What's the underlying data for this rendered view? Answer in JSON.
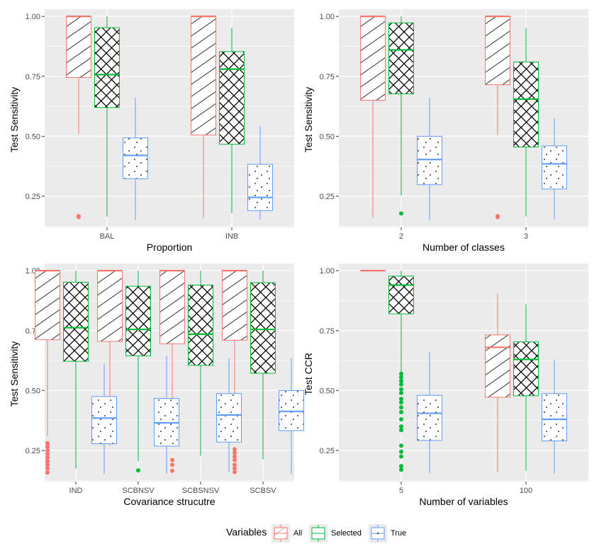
{
  "colors": {
    "panel_bg": "#EBEBEB",
    "grid": "#FFFFFF",
    "tick_text": "#4D4D4D",
    "All": "#F8766D",
    "Selected": "#00BA38",
    "True": "#619CFF"
  },
  "legend": {
    "title": "Variables",
    "position": "bottom",
    "items": [
      {
        "label": "All",
        "pattern": "stripe"
      },
      {
        "label": "Selected",
        "pattern": "crosshatch"
      },
      {
        "label": "True",
        "pattern": "dots"
      }
    ]
  },
  "chart_data": [
    {
      "type": "boxplot",
      "xlabel": "Proportion",
      "ylabel": "Test Sensitivity",
      "ylim": [
        0.12,
        1.03
      ],
      "yticks": [
        0.25,
        0.5,
        0.75,
        1.0
      ],
      "ytick_labels": [
        "0.25",
        "0.50",
        "0.75",
        "1.00"
      ],
      "grid": true,
      "categories": [
        "BAL",
        "INB"
      ],
      "series": [
        {
          "name": "All",
          "boxes": [
            {
              "min": 0.51,
              "q1": 0.745,
              "median": 1.0,
              "q3": 1.0,
              "max": 1.0,
              "outliers": [
                0.167,
                0.163
              ]
            },
            {
              "min": 0.16,
              "q1": 0.505,
              "median": 1.0,
              "q3": 1.0,
              "max": 1.0,
              "outliers": []
            }
          ]
        },
        {
          "name": "Selected",
          "boxes": [
            {
              "min": 0.165,
              "q1": 0.62,
              "median": 0.757,
              "q3": 0.953,
              "max": 1.0,
              "outliers": []
            },
            {
              "min": 0.18,
              "q1": 0.467,
              "median": 0.78,
              "q3": 0.853,
              "max": 0.953,
              "outliers": []
            }
          ]
        },
        {
          "name": "True",
          "boxes": [
            {
              "min": 0.15,
              "q1": 0.323,
              "median": 0.42,
              "q3": 0.493,
              "max": 0.66,
              "outliers": []
            },
            {
              "min": 0.152,
              "q1": 0.19,
              "median": 0.245,
              "q3": 0.383,
              "max": 0.543,
              "outliers": []
            }
          ]
        }
      ]
    },
    {
      "type": "boxplot",
      "xlabel": "Number of classes",
      "ylabel": "Test Sensitivity",
      "ylim": [
        0.12,
        1.03
      ],
      "yticks": [
        0.25,
        0.5,
        0.75,
        1.0
      ],
      "ytick_labels": [
        "0.25",
        "0.50",
        "0.75",
        "1.00"
      ],
      "grid": true,
      "categories": [
        "2",
        "3"
      ],
      "series": [
        {
          "name": "All",
          "boxes": [
            {
              "min": 0.16,
              "q1": 0.65,
              "median": 1.0,
              "q3": 1.0,
              "max": 1.0,
              "outliers": []
            },
            {
              "min": 0.505,
              "q1": 0.715,
              "median": 1.0,
              "q3": 1.0,
              "max": 1.0,
              "outliers": [
                0.167,
                0.163
              ]
            }
          ]
        },
        {
          "name": "Selected",
          "boxes": [
            {
              "min": 0.253,
              "q1": 0.677,
              "median": 0.86,
              "q3": 0.973,
              "max": 1.0,
              "outliers": [
                0.178
              ]
            },
            {
              "min": 0.165,
              "q1": 0.455,
              "median": 0.655,
              "q3": 0.81,
              "max": 0.95,
              "outliers": []
            }
          ]
        },
        {
          "name": "True",
          "boxes": [
            {
              "min": 0.15,
              "q1": 0.298,
              "median": 0.403,
              "q3": 0.5,
              "max": 0.66,
              "outliers": []
            },
            {
              "min": 0.152,
              "q1": 0.28,
              "median": 0.385,
              "q3": 0.46,
              "max": 0.575,
              "outliers": []
            }
          ]
        }
      ]
    },
    {
      "type": "boxplot",
      "xlabel": "Covariance strucutre",
      "ylabel": "Test Sensitivity",
      "ylim": [
        0.12,
        1.03
      ],
      "yticks": [
        0.25,
        0.5,
        0.75,
        1.0
      ],
      "ytick_labels": [
        "0.25",
        "0.50",
        "0.75",
        "1.00"
      ],
      "grid": true,
      "categories": [
        "IND",
        "SCBNSV",
        "SCBSNSV",
        "SCBSV"
      ],
      "series": [
        {
          "name": "All",
          "boxes": [
            {
              "min": 0.31,
              "q1": 0.712,
              "median": 1.0,
              "q3": 1.0,
              "max": 1.0,
              "outliers": [
                0.28,
                0.265,
                0.25,
                0.235,
                0.22,
                0.205,
                0.19,
                0.175,
                0.158
              ]
            },
            {
              "min": 0.27,
              "q1": 0.705,
              "median": 1.0,
              "q3": 1.0,
              "max": 1.0,
              "outliers": []
            },
            {
              "min": 0.29,
              "q1": 0.695,
              "median": 1.0,
              "q3": 1.0,
              "max": 1.0,
              "outliers": [
                0.21,
                0.19,
                0.165
              ]
            },
            {
              "min": 0.29,
              "q1": 0.71,
              "median": 1.0,
              "q3": 1.0,
              "max": 1.0,
              "outliers": [
                0.255,
                0.24,
                0.225,
                0.21,
                0.19,
                0.175,
                0.16
              ]
            }
          ]
        },
        {
          "name": "Selected",
          "boxes": [
            {
              "min": 0.175,
              "q1": 0.622,
              "median": 0.762,
              "q3": 0.952,
              "max": 1.0,
              "outliers": []
            },
            {
              "min": 0.205,
              "q1": 0.645,
              "median": 0.755,
              "q3": 0.935,
              "max": 1.0,
              "outliers": [
                0.167
              ]
            },
            {
              "min": 0.228,
              "q1": 0.605,
              "median": 0.735,
              "q3": 0.94,
              "max": 1.0,
              "outliers": []
            },
            {
              "min": 0.213,
              "q1": 0.572,
              "median": 0.755,
              "q3": 0.95,
              "max": 1.0,
              "outliers": []
            }
          ]
        },
        {
          "name": "True",
          "boxes": [
            {
              "min": 0.152,
              "q1": 0.278,
              "median": 0.385,
              "q3": 0.475,
              "max": 0.61,
              "outliers": []
            },
            {
              "min": 0.152,
              "q1": 0.268,
              "median": 0.365,
              "q3": 0.467,
              "max": 0.645,
              "outliers": []
            },
            {
              "min": 0.16,
              "q1": 0.285,
              "median": 0.398,
              "q3": 0.487,
              "max": 0.635,
              "outliers": []
            },
            {
              "min": 0.152,
              "q1": 0.333,
              "median": 0.413,
              "q3": 0.5,
              "max": 0.635,
              "outliers": []
            }
          ]
        }
      ]
    },
    {
      "type": "boxplot",
      "xlabel": "Number of variables",
      "ylabel": "Test CCR",
      "ylim": [
        0.12,
        1.03
      ],
      "yticks": [
        0.25,
        0.5,
        0.75,
        1.0
      ],
      "ytick_labels": [
        "0.25",
        "0.50",
        "0.75",
        "1.00"
      ],
      "grid": true,
      "categories": [
        "5",
        "100"
      ],
      "series": [
        {
          "name": "All",
          "boxes": [
            {
              "min": 1.0,
              "q1": 1.0,
              "median": 1.0,
              "q3": 1.0,
              "max": 1.0,
              "outliers": []
            },
            {
              "min": 0.16,
              "q1": 0.472,
              "median": 0.68,
              "q3": 0.732,
              "max": 0.905,
              "outliers": []
            }
          ]
        },
        {
          "name": "Selected",
          "boxes": [
            {
              "min": 0.575,
              "q1": 0.82,
              "median": 0.94,
              "q3": 0.977,
              "max": 1.0,
              "outliers": [
                0.57,
                0.555,
                0.54,
                0.525,
                0.505,
                0.49,
                0.465,
                0.45,
                0.43,
                0.41,
                0.38,
                0.35,
                0.335,
                0.27,
                0.245,
                0.225,
                0.185,
                0.17
              ]
            },
            {
              "min": 0.165,
              "q1": 0.478,
              "median": 0.63,
              "q3": 0.703,
              "max": 0.86,
              "outliers": []
            }
          ]
        },
        {
          "name": "True",
          "boxes": [
            {
              "min": 0.155,
              "q1": 0.292,
              "median": 0.405,
              "q3": 0.48,
              "max": 0.66,
              "outliers": []
            },
            {
              "min": 0.153,
              "q1": 0.29,
              "median": 0.38,
              "q3": 0.487,
              "max": 0.63,
              "outliers": []
            }
          ]
        }
      ]
    }
  ]
}
